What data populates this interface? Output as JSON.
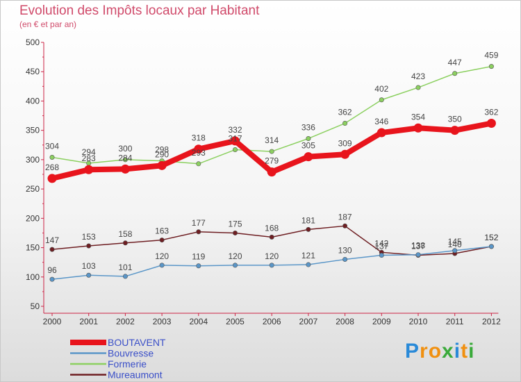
{
  "title": "Evolution des Impôts locaux par Habitant",
  "subtitle": "(en € et par an)",
  "logo": {
    "letters": [
      "P",
      "r",
      "o",
      "x",
      "i",
      "t",
      "i"
    ],
    "colors": [
      "#2a8ad8",
      "#f09010",
      "#f09010",
      "#3aaa3a",
      "#2a8ad8",
      "#f09010",
      "#3aaa3a"
    ]
  },
  "chart_data": {
    "type": "line",
    "x": [
      "2000",
      "2001",
      "2002",
      "2003",
      "2004",
      "2005",
      "2006",
      "2007",
      "2008",
      "2009",
      "2010",
      "2011",
      "2012"
    ],
    "ylim": [
      50,
      500
    ],
    "yticks": [
      "50",
      "100",
      "150",
      "200",
      "250",
      "300",
      "350",
      "400",
      "450",
      "500"
    ],
    "grid": false,
    "legend_position": "bottom-left",
    "series": [
      {
        "name": "BOUTAVENT",
        "color": "#e8141c",
        "values": [
          268,
          283,
          284,
          290,
          318,
          332,
          279,
          305,
          309,
          346,
          354,
          350,
          362
        ]
      },
      {
        "name": "Bouvresse",
        "color": "#5a96c8",
        "values": [
          96,
          103,
          101,
          120,
          119,
          120,
          120,
          121,
          130,
          137,
          138,
          145,
          152
        ]
      },
      {
        "name": "Formerie",
        "color": "#8cd060",
        "values": [
          304,
          294,
          300,
          298,
          293,
          317,
          314,
          336,
          362,
          402,
          423,
          447,
          459
        ]
      },
      {
        "name": "Mureaumont",
        "color": "#6e1e22",
        "values": [
          147,
          153,
          158,
          163,
          177,
          175,
          168,
          181,
          187,
          142,
          137,
          140,
          152
        ]
      }
    ]
  }
}
